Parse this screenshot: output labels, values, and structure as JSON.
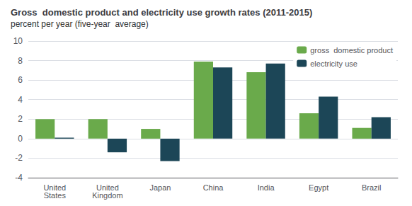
{
  "chart_data": {
    "type": "bar",
    "title": "Gross  domestic product and electricity use growth rates (2011-2015)",
    "subtitle": "percent per year (five-year  average)",
    "categories": [
      "United\nStates",
      "United\nKingdom",
      "Japan",
      "China",
      "India",
      "Egypt",
      "Brazil"
    ],
    "series": [
      {
        "name": "gross  domestic product",
        "color": "#6aaa4b",
        "values": [
          2.0,
          2.0,
          1.0,
          7.9,
          6.8,
          2.6,
          1.1
        ]
      },
      {
        "name": "electricity use",
        "color": "#1c4657",
        "values": [
          0.1,
          -1.4,
          -2.3,
          7.3,
          7.7,
          4.3,
          2.2
        ]
      }
    ],
    "ylim": [
      -4,
      10
    ],
    "yticks": [
      -4,
      -2,
      0,
      2,
      4,
      6,
      8,
      10
    ],
    "grid": true,
    "legend": "upper right"
  }
}
